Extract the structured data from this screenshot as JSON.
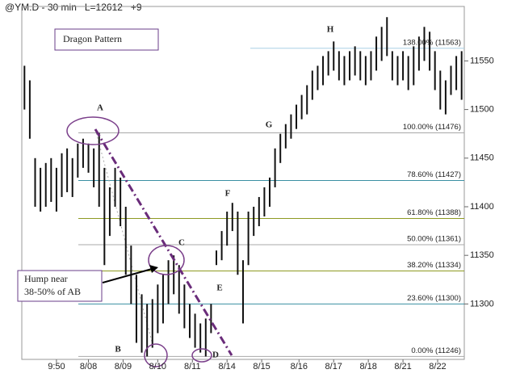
{
  "chart_data": {
    "type": "ohlc",
    "title": "@YM.D - 30 min   L=12612   +9",
    "color": "#111111",
    "high": [
      11545,
      11530,
      11450,
      11440,
      11445,
      11450,
      11440,
      11455,
      11460,
      11450,
      11465,
      11470,
      11465,
      11460,
      11476,
      11440,
      11420,
      11440,
      11430,
      11400,
      11360,
      11330,
      11310,
      11300,
      11305,
      11320,
      11330,
      11345,
      11350,
      11340,
      11320,
      11300,
      11290,
      11280,
      11285,
      11300,
      11355,
      11375,
      11395,
      11404,
      11395,
      11345,
      11395,
      11400,
      11410,
      11420,
      11430,
      11460,
      11475,
      11485,
      11495,
      11505,
      11515,
      11525,
      11540,
      11545,
      11555,
      11560,
      11570,
      11560,
      11555,
      11560,
      11565,
      11560,
      11555,
      11560,
      11575,
      11585,
      11595,
      11560,
      11555,
      11560,
      11555,
      11565,
      11575,
      11585,
      11580,
      11560,
      11540,
      11530,
      11545,
      11555,
      11560
    ],
    "low": [
      11500,
      11470,
      11400,
      11395,
      11400,
      11405,
      11395,
      11410,
      11415,
      11410,
      11430,
      11440,
      11435,
      11420,
      11400,
      11340,
      11370,
      11400,
      11380,
      11330,
      11300,
      11260,
      11250,
      11246,
      11255,
      11270,
      11280,
      11300,
      11310,
      11290,
      11275,
      11265,
      11255,
      11250,
      11246,
      11270,
      11340,
      11345,
      11360,
      11375,
      11330,
      11280,
      11340,
      11370,
      11380,
      11390,
      11400,
      11420,
      11445,
      11460,
      11470,
      11480,
      11490,
      11495,
      11510,
      11520,
      11525,
      11535,
      11540,
      11530,
      11525,
      11530,
      11535,
      11530,
      11525,
      11530,
      11540,
      11550,
      11555,
      11530,
      11525,
      11530,
      11520,
      11525,
      11540,
      11550,
      11540,
      11520,
      11500,
      11495,
      11515,
      11520,
      11510
    ],
    "xlim": [
      0,
      83
    ],
    "xticks": [
      {
        "value": 6.5,
        "label": "9:50"
      },
      {
        "value": 12.5,
        "label": "8/08"
      },
      {
        "value": 19,
        "label": "8/09"
      },
      {
        "value": 25.5,
        "label": "8/10"
      },
      {
        "value": 32,
        "label": "8/11"
      },
      {
        "value": 38.5,
        "label": "8/14"
      },
      {
        "value": 45,
        "label": "8/15"
      },
      {
        "value": 52,
        "label": "8/16"
      },
      {
        "value": 58.5,
        "label": "8/17"
      },
      {
        "value": 65,
        "label": "8/18"
      },
      {
        "value": 71.5,
        "label": "8/21"
      },
      {
        "value": 78,
        "label": "8/22"
      }
    ],
    "ylim": [
      11243,
      11606
    ],
    "yticks": [
      11300,
      11350,
      11400,
      11450,
      11500,
      11550
    ],
    "levels": [
      {
        "label": "138.00% (11563)",
        "value": 11563,
        "color": "#a9cfe6"
      },
      {
        "label": "100.00% (11476)",
        "value": 11476,
        "color": "#a8a8a8"
      },
      {
        "label": "78.60% (11427)",
        "value": 11427,
        "color": "#3a8fa3"
      },
      {
        "label": "61.80% (11388)",
        "value": 11388,
        "color": "#8e9a22"
      },
      {
        "label": "50.00% (11361)",
        "value": 11361,
        "color": "#a8a8a8"
      },
      {
        "label": "38.20% (11334)",
        "value": 11334,
        "color": "#8e9a22"
      },
      {
        "label": "23.60% (11300)",
        "value": 11300,
        "color": "#3a8fa3"
      },
      {
        "label": "0.00% (11246)",
        "value": 11246,
        "color": "#a8a8a8"
      }
    ],
    "annotations": [
      "A",
      "B",
      "C",
      "D",
      "E",
      "F",
      "G",
      "H"
    ],
    "pattern_label": "Dragon Pattern",
    "hump_note": [
      "Hump near",
      "38-50% of AB"
    ]
  }
}
